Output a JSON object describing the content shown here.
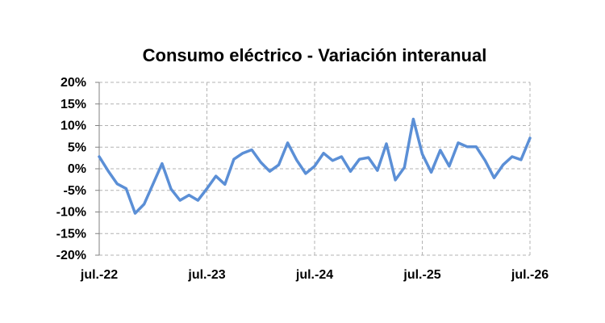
{
  "chart_data": {
    "type": "line",
    "title": "Consumo eléctrico - Variación interanual",
    "xlabel": "",
    "ylabel": "",
    "x_tick_labels": [
      "jul.-22",
      "jul.-23",
      "jul.-24",
      "jul.-25",
      "jul.-26"
    ],
    "y_tick_labels": [
      "20%",
      "15%",
      "10%",
      "5%",
      "0%",
      "-5%",
      "-10%",
      "-15%",
      "-20%"
    ],
    "ylim": [
      -20,
      20
    ],
    "y_unit": "%",
    "grid": true,
    "legend": "none",
    "line_color": "#5b8fd6",
    "series": [
      {
        "values": [
          2.8,
          -0.5,
          -3.5,
          -4.6,
          -10.3,
          -8.2,
          -3.5,
          1.2,
          -4.7,
          -7.3,
          -6.1,
          -7.3,
          -4.6,
          -1.7,
          -3.6,
          2.2,
          3.6,
          4.4,
          1.5,
          -0.6,
          0.9,
          6.0,
          2.0,
          -1.1,
          0.6,
          3.6,
          1.9,
          2.8,
          -0.6,
          2.2,
          2.6,
          -0.4,
          5.8,
          -2.6,
          0.3,
          11.5,
          3.4,
          -0.8,
          4.3,
          0.6,
          6.0,
          5.1,
          5.1,
          1.9,
          -2.1,
          0.9,
          2.8,
          2.1,
          7.1
        ]
      }
    ]
  }
}
